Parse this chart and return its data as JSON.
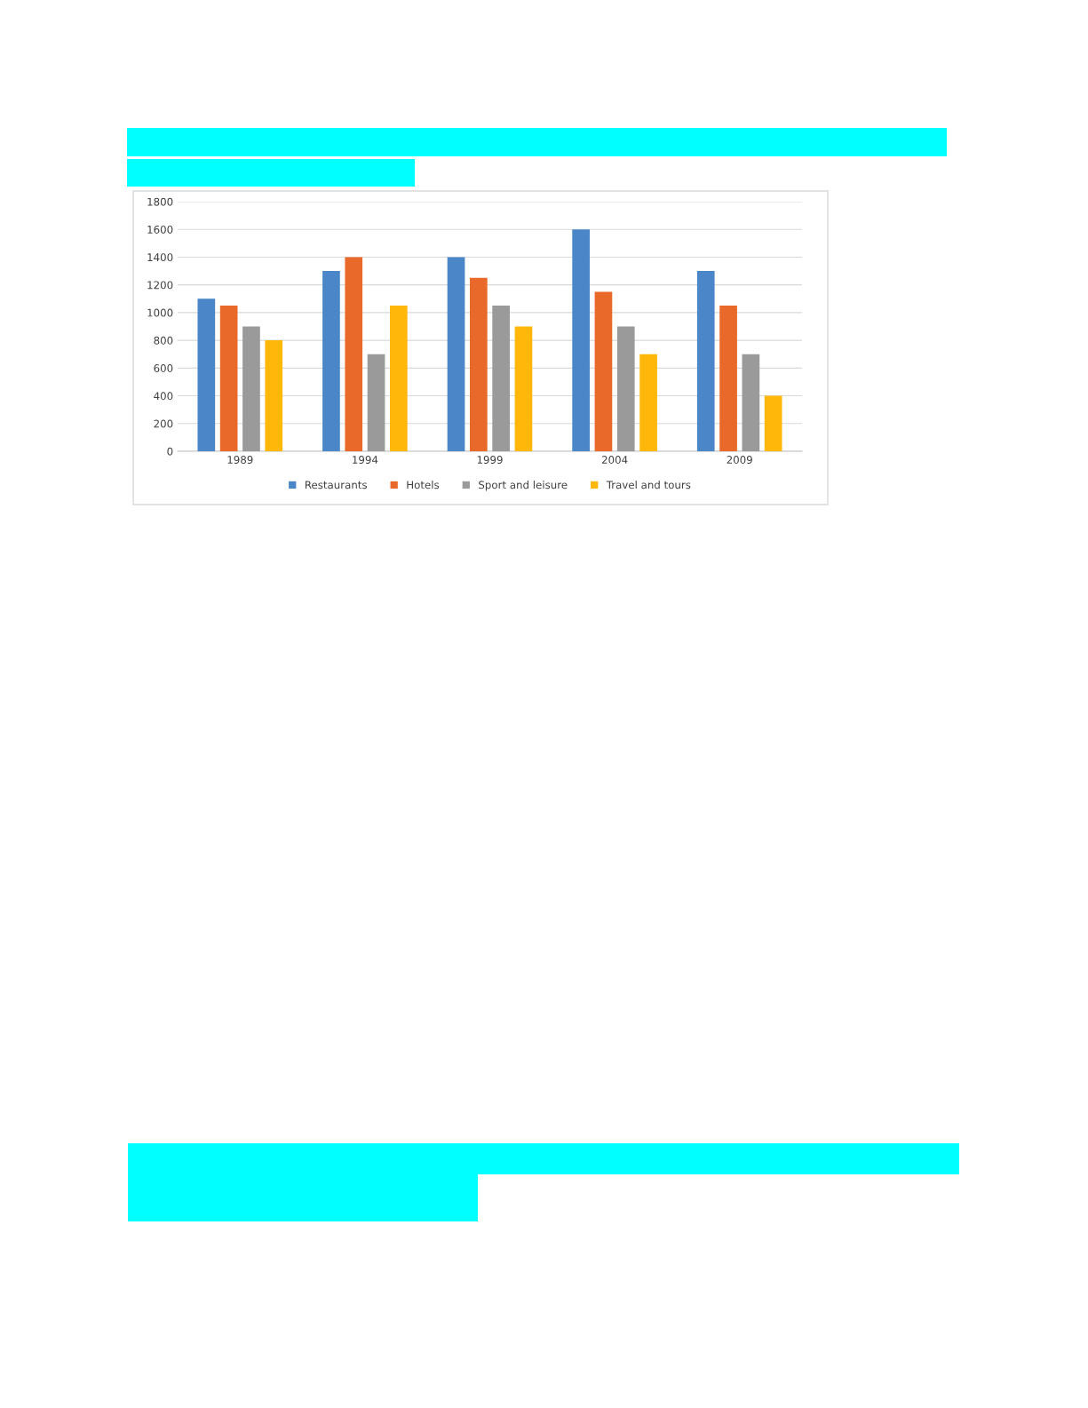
{
  "chart_data": {
    "type": "bar",
    "categories": [
      "1989",
      "1994",
      "1999",
      "2004",
      "2009"
    ],
    "series": [
      {
        "name": "Restaurants",
        "color": "#4a86c8",
        "values": [
          1100,
          1300,
          1400,
          1600,
          1300
        ]
      },
      {
        "name": "Hotels",
        "color": "#e8692a",
        "values": [
          1050,
          1400,
          1250,
          1150,
          1050
        ]
      },
      {
        "name": "Sport and leisure",
        "color": "#9a9a9a",
        "values": [
          900,
          700,
          1050,
          900,
          700
        ]
      },
      {
        "name": "Travel and tours",
        "color": "#ffb80a",
        "values": [
          800,
          1050,
          900,
          700,
          400
        ]
      }
    ],
    "ylim": [
      0,
      1800
    ],
    "yticks": [
      0,
      200,
      400,
      600,
      800,
      1000,
      1200,
      1400,
      1600,
      1800
    ],
    "grid": "y",
    "legend": "bottom"
  }
}
